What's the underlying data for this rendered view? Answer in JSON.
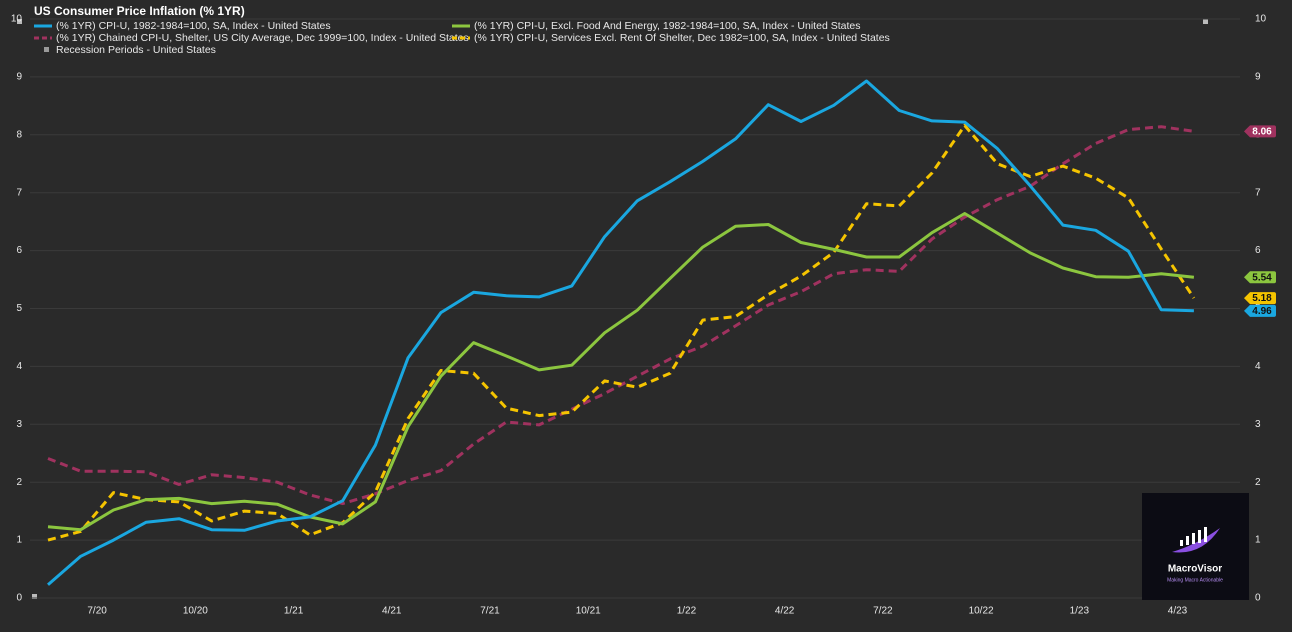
{
  "chart_data": {
    "type": "line",
    "title": "US Consumer Price Inflation (% 1YR)",
    "categories": [
      null,
      null,
      "7/20",
      null,
      null,
      "10/20",
      null,
      null,
      "1/21",
      null,
      null,
      "4/21",
      null,
      null,
      "7/21",
      null,
      null,
      "10/21",
      null,
      null,
      "1/22",
      null,
      null,
      "4/22",
      null,
      null,
      "7/22",
      null,
      null,
      "10/22",
      null,
      null,
      "1/23",
      null,
      null,
      "4/23"
    ],
    "series": [
      {
        "name": "(% 1YR) CPI-U, 1982-1984=100, SA, Index - United States",
        "color": "#1aa7e0",
        "dash": false,
        "values": [
          0.23,
          0.72,
          1.0,
          1.31,
          1.37,
          1.18,
          1.17,
          1.33,
          1.4,
          1.68,
          2.64,
          4.15,
          4.93,
          5.28,
          5.22,
          5.2,
          5.39,
          6.24,
          6.86,
          7.19,
          7.54,
          7.93,
          8.52,
          8.23,
          8.51,
          8.93,
          8.42,
          8.24,
          8.22,
          7.76,
          7.12,
          6.44,
          6.35,
          5.99,
          4.98,
          4.96
        ]
      },
      {
        "name": "(% 1YR) CPI-U, Excl. Food And Energy, 1982-1984=100, SA, Index - United States",
        "color": "#8cc63f",
        "dash": false,
        "values": [
          1.23,
          1.18,
          1.52,
          1.7,
          1.72,
          1.63,
          1.67,
          1.62,
          1.4,
          1.28,
          1.66,
          2.96,
          3.83,
          4.41,
          4.18,
          3.94,
          4.02,
          4.58,
          4.97,
          5.52,
          6.06,
          6.42,
          6.45,
          6.14,
          6.02,
          5.89,
          5.89,
          6.31,
          6.64,
          6.3,
          5.96,
          5.7,
          5.55,
          5.54,
          5.6,
          5.54
        ]
      },
      {
        "name": "(% 1YR) Chained CPI-U, Shelter, US City Average, Dec 1999=100, Index - United States",
        "color": "#a0325f",
        "dash": true,
        "values": [
          2.41,
          2.19,
          2.19,
          2.18,
          1.96,
          2.13,
          2.08,
          2.0,
          1.78,
          1.63,
          1.8,
          2.03,
          2.2,
          2.66,
          3.04,
          2.99,
          3.26,
          3.53,
          3.83,
          4.13,
          4.35,
          4.7,
          5.06,
          5.29,
          5.6,
          5.67,
          5.64,
          6.2,
          6.58,
          6.88,
          7.11,
          7.5,
          7.85,
          8.09,
          8.14,
          8.06
        ]
      },
      {
        "name": "(% 1YR) CPI-U, Services Excl. Rent Of Shelter, Dec 1982=100, SA, Index - United States",
        "color": "#f5c400",
        "dash": true,
        "values": [
          1.0,
          1.15,
          1.82,
          1.7,
          1.66,
          1.33,
          1.5,
          1.46,
          1.09,
          1.3,
          1.83,
          3.1,
          3.93,
          3.88,
          3.28,
          3.15,
          3.21,
          3.75,
          3.64,
          3.88,
          4.8,
          4.86,
          5.24,
          5.56,
          5.97,
          6.81,
          6.77,
          7.34,
          8.16,
          7.5,
          7.28,
          7.46,
          7.25,
          6.91,
          6.03,
          5.18
        ]
      },
      {
        "name": "Recession Periods - United States",
        "color": "#9a9a9a",
        "dash": false,
        "values": [
          null,
          null,
          null,
          null,
          null,
          null,
          null,
          null,
          null,
          null,
          null,
          null,
          null,
          null,
          null,
          null,
          null,
          null,
          null,
          null,
          null,
          null,
          null,
          null,
          null,
          null,
          null,
          null,
          null,
          null,
          null,
          null,
          null,
          null,
          null,
          null
        ]
      }
    ],
    "ylim": [
      0,
      10
    ],
    "yticks": [
      0,
      1,
      2,
      3,
      4,
      5,
      6,
      7,
      8,
      9,
      10
    ],
    "y2lim": [
      0,
      10
    ],
    "y2ticks": [
      0,
      1,
      2,
      3,
      4,
      5,
      6,
      7,
      8,
      9,
      10
    ],
    "grid": true
  },
  "watermark": {
    "name": "MacroVisor",
    "tagline": "Making Macro Actionable"
  }
}
